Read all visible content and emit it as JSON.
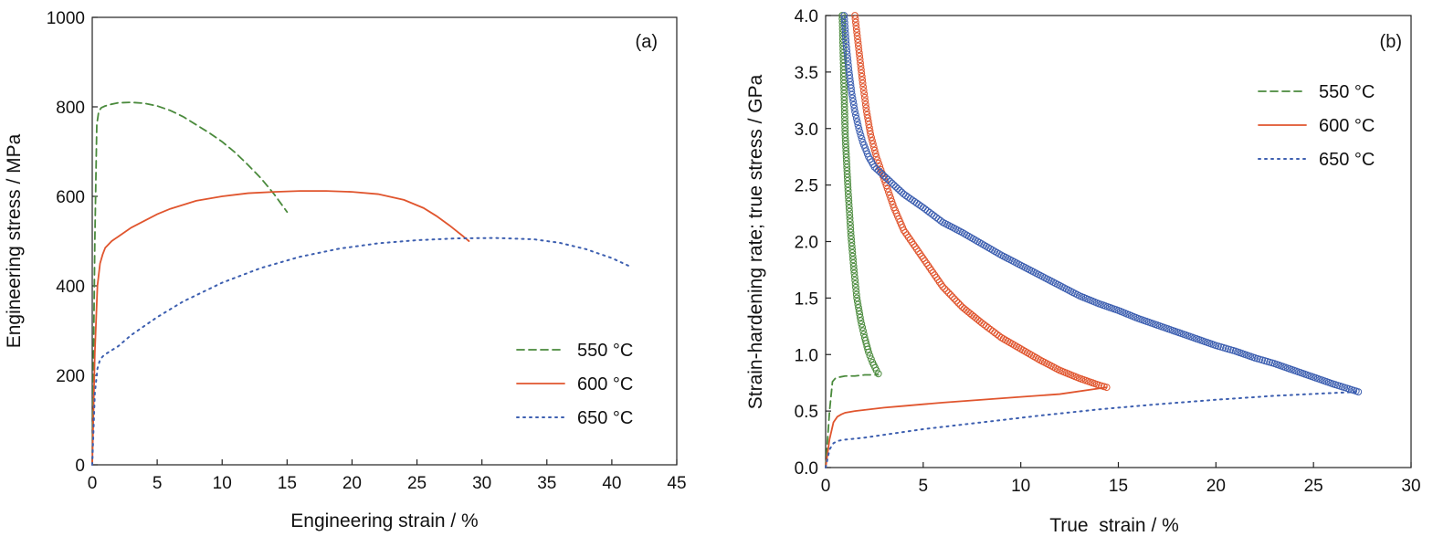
{
  "chart_data": [
    {
      "type": "line",
      "panel_label": "(a)",
      "xlabel": "Engineering strain / %",
      "ylabel": "Engineering stress / MPa",
      "xlim": [
        0,
        45
      ],
      "ylim": [
        0,
        1000
      ],
      "xticks": [
        0,
        5,
        10,
        15,
        20,
        25,
        30,
        35,
        40,
        45
      ],
      "yticks": [
        0,
        200,
        400,
        600,
        800,
        1000
      ],
      "legend_position": "bottom-right",
      "series": [
        {
          "name": "550 °C",
          "color": "#4a8a3c",
          "style": "dashed",
          "x": [
            0,
            0.2,
            0.35,
            0.5,
            0.7,
            1.0,
            1.5,
            2.0,
            3.0,
            4.0,
            5.0,
            6.0,
            7.0,
            8.0,
            9.0,
            10.0,
            11.0,
            12.0,
            13.0,
            14.0,
            15.0
          ],
          "y": [
            0,
            500,
            760,
            790,
            798,
            802,
            806,
            809,
            810,
            808,
            802,
            792,
            778,
            760,
            742,
            722,
            698,
            670,
            640,
            605,
            565
          ]
        },
        {
          "name": "600 °C",
          "color": "#e0552e",
          "style": "solid",
          "x": [
            0,
            0.2,
            0.4,
            0.6,
            0.8,
            1.0,
            1.5,
            2.0,
            3.0,
            4.0,
            5.0,
            6.0,
            8.0,
            10.0,
            12.0,
            14.0,
            16.0,
            18.0,
            20.0,
            22.0,
            24.0,
            25.5,
            26.5,
            27.5,
            28.5,
            29.0
          ],
          "y": [
            0,
            250,
            400,
            450,
            470,
            485,
            500,
            510,
            530,
            545,
            560,
            572,
            590,
            600,
            607,
            610,
            612,
            612,
            610,
            605,
            592,
            574,
            556,
            535,
            512,
            500
          ]
        },
        {
          "name": "650 °C",
          "color": "#3d5fb0",
          "style": "dotted",
          "x": [
            0,
            0.2,
            0.4,
            0.6,
            0.8,
            1.0,
            2.0,
            3.0,
            5.0,
            7.0,
            10.0,
            13.0,
            16.0,
            19.0,
            22.0,
            25.0,
            28.0,
            31.0,
            34.0,
            36.0,
            38.0,
            40.0,
            41.5
          ],
          "y": [
            0,
            160,
            215,
            235,
            242,
            247,
            265,
            290,
            330,
            365,
            407,
            440,
            465,
            483,
            495,
            502,
            506,
            507,
            504,
            496,
            482,
            462,
            442
          ]
        }
      ]
    },
    {
      "type": "line",
      "panel_label": "(b)",
      "xlabel": "True  strain / %",
      "ylabel": "Strain-hardening rate; true stress / GPa",
      "xlim": [
        0,
        30
      ],
      "ylim": [
        0,
        4
      ],
      "xticks": [
        0,
        5,
        10,
        15,
        20,
        25,
        30
      ],
      "yticks": [
        "0.0",
        "0.5",
        "1.0",
        "1.5",
        "2.0",
        "2.5",
        "3.0",
        "3.5",
        "4.0"
      ],
      "legend_position": "top-right",
      "series": [
        {
          "name": "550 °C",
          "color": "#4a8a3c",
          "style": "dashed",
          "stress_x": [
            0,
            0.2,
            0.35,
            0.5,
            0.7,
            1.0,
            1.5,
            2.0,
            2.5,
            2.7
          ],
          "stress_y": [
            0,
            0.5,
            0.76,
            0.79,
            0.8,
            0.81,
            0.81,
            0.82,
            0.82,
            0.82
          ],
          "hardening_x": [
            0.85,
            1.0,
            1.15,
            1.3,
            1.45,
            1.6,
            1.8,
            2.0,
            2.2,
            2.4,
            2.6,
            2.7
          ],
          "hardening_y": [
            4.0,
            2.95,
            2.45,
            2.05,
            1.75,
            1.5,
            1.3,
            1.15,
            1.02,
            0.93,
            0.86,
            0.83
          ]
        },
        {
          "name": "600 °C",
          "color": "#e0552e",
          "style": "solid",
          "stress_x": [
            0,
            0.2,
            0.4,
            0.6,
            0.8,
            1.0,
            1.5,
            2.0,
            3.0,
            4.0,
            5.0,
            6.0,
            8.0,
            10.0,
            12.0,
            14.0,
            14.4
          ],
          "stress_y": [
            0,
            0.25,
            0.4,
            0.45,
            0.47,
            0.485,
            0.5,
            0.51,
            0.53,
            0.545,
            0.56,
            0.575,
            0.6,
            0.625,
            0.65,
            0.7,
            0.71
          ],
          "hardening_x": [
            1.5,
            1.7,
            1.9,
            2.1,
            2.3,
            2.6,
            3.0,
            3.5,
            4.0,
            5.0,
            6.0,
            7.0,
            8.0,
            9.0,
            10.0,
            11.0,
            12.0,
            13.0,
            14.0,
            14.4
          ],
          "hardening_y": [
            4.0,
            3.7,
            3.4,
            3.15,
            2.95,
            2.75,
            2.55,
            2.3,
            2.1,
            1.85,
            1.6,
            1.42,
            1.28,
            1.15,
            1.05,
            0.95,
            0.86,
            0.79,
            0.73,
            0.71
          ]
        },
        {
          "name": "650 °C",
          "color": "#3d5fb0",
          "style": "dotted",
          "stress_x": [
            0,
            0.2,
            0.4,
            0.6,
            0.8,
            1.0,
            2.0,
            3.0,
            5.0,
            8.0,
            11.0,
            14.0,
            17.0,
            20.0,
            23.0,
            26.0,
            27.3
          ],
          "stress_y": [
            0,
            0.16,
            0.215,
            0.235,
            0.242,
            0.247,
            0.265,
            0.29,
            0.34,
            0.4,
            0.46,
            0.515,
            0.56,
            0.6,
            0.635,
            0.66,
            0.67
          ],
          "hardening_x": [
            0.95,
            1.05,
            1.2,
            1.35,
            1.5,
            1.7,
            1.9,
            2.2,
            2.5,
            3.0,
            3.5,
            4.0,
            5.0,
            6.0,
            7.0,
            8.0,
            9.0,
            10.0,
            11.0,
            12.0,
            13.0,
            14.0,
            15.0,
            16.0,
            17.0,
            18.0,
            19.0,
            20.0,
            21.0,
            22.0,
            23.0,
            24.0,
            25.0,
            26.0,
            27.3
          ],
          "hardening_y": [
            4.0,
            3.75,
            3.5,
            3.3,
            3.15,
            3.0,
            2.88,
            2.75,
            2.66,
            2.58,
            2.5,
            2.42,
            2.3,
            2.17,
            2.08,
            1.98,
            1.88,
            1.79,
            1.7,
            1.61,
            1.52,
            1.45,
            1.39,
            1.32,
            1.26,
            1.2,
            1.14,
            1.08,
            1.03,
            0.97,
            0.92,
            0.86,
            0.8,
            0.74,
            0.67
          ]
        }
      ]
    }
  ]
}
